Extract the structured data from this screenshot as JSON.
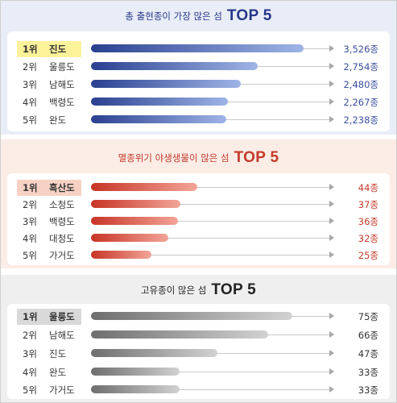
{
  "colors": {
    "panel1_bg": "#e9edf7",
    "panel1_title": "#27378a",
    "panel1_bar_from": "#2a4090",
    "panel1_bar_to": "#9fb4e6",
    "panel1_highlight": "#fbf29a",
    "panel1_value": "#3b4f9c",
    "panel2_bg": "#fbece6",
    "panel2_title": "#c33a2a",
    "panel2_bar_from": "#c73526",
    "panel2_bar_to": "#f2a497",
    "panel2_highlight": "#f7d2c4",
    "panel2_value": "#c33a2a",
    "panel3_bg": "#efefef",
    "panel3_title": "#222222",
    "panel3_bar_from": "#6e6e6e",
    "panel3_bar_to": "#d2d2d2",
    "panel3_highlight": "#d9d9d9",
    "panel3_value": "#333333"
  },
  "chart_data": [
    {
      "type": "bar",
      "title": "TOP 5",
      "subtitle": "총 출현종이 가장 많은 섬",
      "unit": "종",
      "ranks": [
        "1위",
        "2위",
        "3위",
        "4위",
        "5위"
      ],
      "categories": [
        "진도",
        "울릉도",
        "남해도",
        "백령도",
        "완도"
      ],
      "values": [
        3526,
        2754,
        2480,
        2267,
        2238
      ],
      "value_labels": [
        "3,526종",
        "2,754종",
        "2,480종",
        "2,267종",
        "2,238종"
      ],
      "xlim": [
        0,
        4000
      ]
    },
    {
      "type": "bar",
      "title": "TOP 5",
      "subtitle": "멸종위기 야생생물이 많은 섬",
      "unit": "종",
      "ranks": [
        "1위",
        "2위",
        "3위",
        "4위",
        "5위"
      ],
      "categories": [
        "흑산도",
        "소청도",
        "백령도",
        "대청도",
        "가거도"
      ],
      "values": [
        44,
        37,
        36,
        32,
        25
      ],
      "value_labels": [
        "44종",
        "37종",
        "36종",
        "32종",
        "25종"
      ],
      "xlim": [
        0,
        100
      ]
    },
    {
      "type": "bar",
      "title": "TOP 5",
      "subtitle": "고유종이 많은 섬",
      "unit": "종",
      "ranks": [
        "1위",
        "2위",
        "3위",
        "4위",
        "5위"
      ],
      "categories": [
        "울릉도",
        "남해도",
        "진도",
        "완도",
        "가거도"
      ],
      "values": [
        75,
        66,
        47,
        33,
        33
      ],
      "value_labels": [
        "75종",
        "66종",
        "47종",
        "33종",
        "33종"
      ],
      "xlim": [
        0,
        90
      ]
    }
  ]
}
